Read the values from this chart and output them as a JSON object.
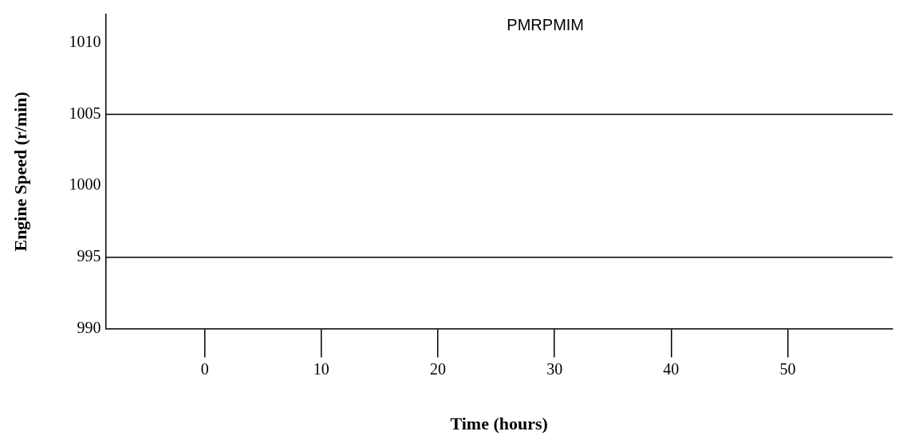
{
  "chart_data": {
    "type": "line",
    "xlabel": "Time (hours)",
    "ylabel": "Engine Speed (r/min)",
    "annotations": [
      "PMRPMIM"
    ],
    "xlim": [
      -8.5,
      59
    ],
    "xticks": [
      0,
      10,
      20,
      30,
      40,
      50
    ],
    "ylim": [
      990,
      1012
    ],
    "yticks": [
      990,
      995,
      1000,
      1005,
      1010
    ],
    "ref_lines": [
      {
        "axis": "y",
        "value": 1005,
        "color": "#000000"
      },
      {
        "axis": "y",
        "value": 995,
        "color": "#000000"
      }
    ],
    "grid": false,
    "legend": false
  }
}
